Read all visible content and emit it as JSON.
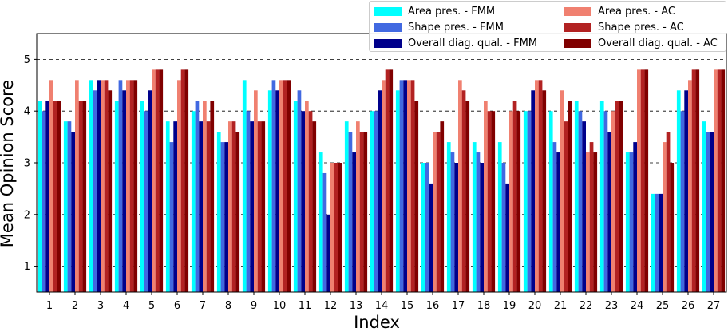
{
  "chart_data": {
    "type": "bar",
    "xlabel": "Index",
    "ylabel": "Mean Opinion Score",
    "ylim": [
      0.5,
      5.5
    ],
    "yticks": [
      1,
      2,
      3,
      4,
      5
    ],
    "grid": "horizontal dashed",
    "legend_position": "top-right",
    "categories": [
      "1",
      "2",
      "3",
      "4",
      "5",
      "6",
      "7",
      "8",
      "9",
      "10",
      "11",
      "12",
      "13",
      "14",
      "15",
      "16",
      "17",
      "18",
      "19",
      "20",
      "21",
      "22",
      "23",
      "24",
      "25",
      "26",
      "27"
    ],
    "series": [
      {
        "name": "Area pres. - FMM",
        "color": "#00ffff",
        "values": [
          4.2,
          3.8,
          4.6,
          4.2,
          4.2,
          3.8,
          4.0,
          3.6,
          4.6,
          4.4,
          4.2,
          3.2,
          3.8,
          4.0,
          4.4,
          3.0,
          3.4,
          3.4,
          3.4,
          4.0,
          4.0,
          4.2,
          4.2,
          3.2,
          2.4,
          4.4,
          3.8
        ]
      },
      {
        "name": "Shape pres. - FMM",
        "color": "#4169e1",
        "values": [
          4.0,
          3.8,
          4.4,
          4.6,
          4.0,
          3.4,
          4.2,
          3.4,
          4.0,
          4.6,
          4.4,
          2.8,
          3.6,
          4.0,
          4.6,
          3.0,
          3.2,
          3.2,
          3.0,
          4.0,
          3.4,
          4.0,
          4.0,
          3.2,
          2.4,
          4.0,
          3.6
        ]
      },
      {
        "name": "Overall diag. qual. - FMM",
        "color": "#00008b",
        "values": [
          4.2,
          3.6,
          4.6,
          4.4,
          4.4,
          3.8,
          3.8,
          3.4,
          3.8,
          4.4,
          4.0,
          2.0,
          3.2,
          4.4,
          4.6,
          2.6,
          3.0,
          3.0,
          2.6,
          4.4,
          3.2,
          3.8,
          3.6,
          3.4,
          2.4,
          4.4,
          3.6
        ]
      },
      {
        "name": "Area pres. - AC",
        "color": "#f08070",
        "values": [
          4.6,
          4.6,
          4.6,
          4.6,
          4.8,
          4.6,
          4.2,
          3.8,
          4.4,
          4.6,
          4.2,
          3.0,
          3.8,
          4.6,
          4.6,
          3.6,
          4.6,
          4.2,
          4.0,
          4.6,
          4.4,
          3.2,
          4.0,
          4.8,
          3.4,
          4.6,
          4.8
        ]
      },
      {
        "name": "Shape pres. - AC",
        "color": "#b22222",
        "values": [
          4.2,
          4.2,
          4.6,
          4.6,
          4.8,
          4.8,
          3.8,
          3.8,
          3.8,
          4.6,
          4.0,
          3.0,
          3.6,
          4.8,
          4.6,
          3.6,
          4.4,
          4.0,
          4.2,
          4.6,
          3.8,
          3.4,
          4.2,
          4.8,
          3.6,
          4.8,
          4.8
        ]
      },
      {
        "name": "Overall diag. qual. - AC",
        "color": "#800000",
        "values": [
          4.2,
          4.2,
          4.4,
          4.6,
          4.8,
          4.8,
          4.2,
          3.6,
          3.8,
          4.6,
          3.8,
          3.0,
          3.6,
          4.8,
          4.2,
          3.8,
          4.2,
          4.0,
          4.0,
          4.4,
          4.2,
          3.2,
          4.2,
          4.8,
          3.0,
          4.8,
          4.8
        ]
      }
    ]
  }
}
